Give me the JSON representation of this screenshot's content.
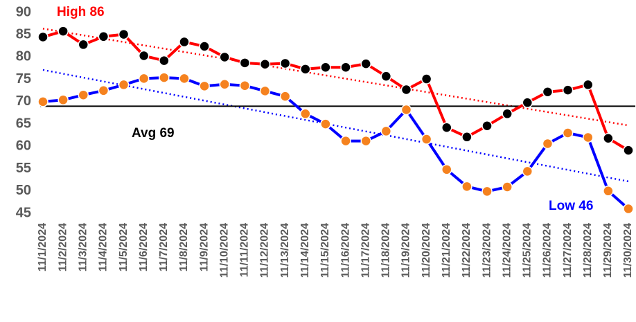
{
  "chart_data": {
    "type": "line",
    "categories": [
      "11/1/2024",
      "11/2/2024",
      "11/3/2024",
      "11/4/2024",
      "11/5/2024",
      "11/6/2024",
      "11/7/2024",
      "11/8/2024",
      "11/9/2024",
      "11/10/2024",
      "11/11/2024",
      "11/12/2024",
      "11/13/2024",
      "11/14/2024",
      "11/15/2024",
      "11/16/2024",
      "11/17/2024",
      "11/18/2024",
      "11/19/2024",
      "11/20/2024",
      "11/21/2024",
      "11/22/2024",
      "11/23/2024",
      "11/24/2024",
      "11/25/2024",
      "11/26/2024",
      "11/27/2024",
      "11/28/2024",
      "11/29/2024",
      "11/30/2024"
    ],
    "series": [
      {
        "name": "High",
        "color": "#ff0000",
        "marker_color": "#000000",
        "values": [
          84.5,
          85.8,
          82.8,
          84.6,
          85.1,
          80.3,
          79.2,
          83.4,
          82.4,
          80.0,
          78.7,
          78.4,
          78.6,
          77.3,
          77.7,
          77.7,
          78.5,
          75.7,
          72.7,
          75.1,
          64.2,
          62.1,
          64.6,
          67.3,
          69.8,
          72.2,
          72.6,
          73.8,
          61.8,
          59.1
        ]
      },
      {
        "name": "Low",
        "color": "#0000ff",
        "marker_color": "#f5821f",
        "values": [
          70.0,
          70.4,
          71.5,
          72.5,
          73.8,
          75.2,
          75.4,
          75.2,
          73.5,
          73.9,
          73.6,
          72.4,
          71.2,
          67.3,
          65.0,
          61.2,
          61.2,
          63.4,
          68.2,
          61.6,
          54.8,
          51.0,
          49.9,
          50.9,
          54.4,
          60.6,
          63.0,
          62.0,
          50.0,
          46.0
        ]
      }
    ],
    "trendline": true,
    "avg_line": 69,
    "annotations": [
      "High 86",
      "Avg 69",
      "Low 46"
    ],
    "ylim": [
      45,
      90
    ],
    "yticks": [
      45,
      50,
      55,
      60,
      65,
      70,
      75,
      80,
      85,
      90
    ],
    "grid": false
  }
}
